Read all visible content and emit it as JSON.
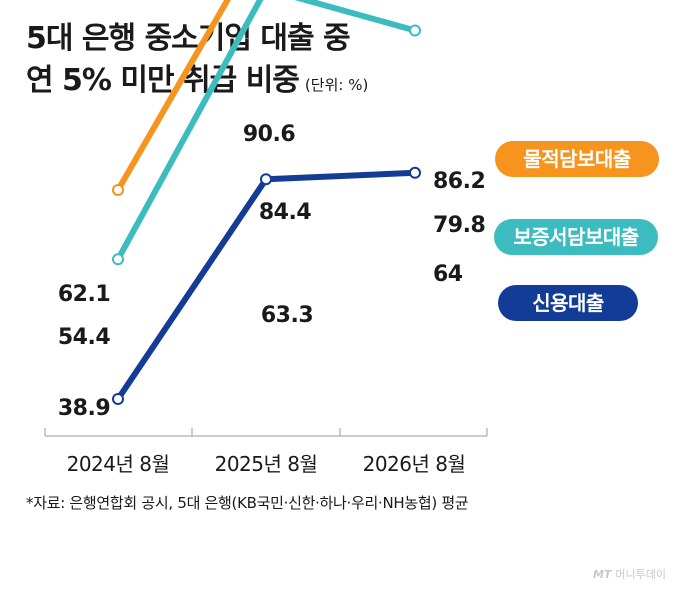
{
  "title": {
    "line1": "5대 은행 중소기업 대출 중",
    "line2": "연 5% 미만 취급 비중",
    "unit": "(단위: %)"
  },
  "footnote": "*자료: 은행연합회 공시, 5대 은행(KB국민·신한·하나·우리·NH농협) 평균",
  "logo": {
    "mark": "MT",
    "name": "머니투데이"
  },
  "chart_data": {
    "type": "line",
    "categories": [
      "2024년 8월",
      "2025년 8월",
      "2026년 8월"
    ],
    "ylim": [
      30,
      95
    ],
    "grid": false,
    "legend_position": "right",
    "series": [
      {
        "name": "물적담보대출",
        "values": [
          62.1,
          90.6,
          86.2
        ],
        "labels": [
          "62.1",
          "90.6",
          "86.2"
        ],
        "color": "#f7941d"
      },
      {
        "name": "보증서담보대출",
        "values": [
          54.4,
          84.4,
          79.8
        ],
        "labels": [
          "54.4",
          "84.4",
          "79.8"
        ],
        "color": "#3dbcc0"
      },
      {
        "name": "신용대출",
        "values": [
          38.9,
          63.3,
          64
        ],
        "labels": [
          "38.9",
          "63.3",
          "64"
        ],
        "color": "#123c96"
      }
    ]
  }
}
